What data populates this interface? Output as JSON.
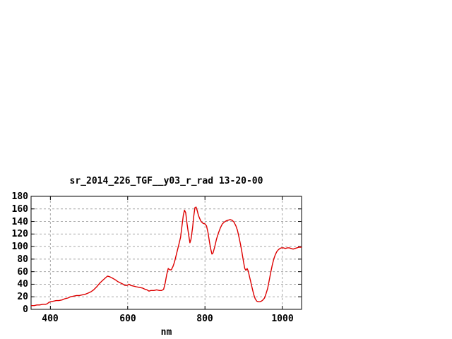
{
  "chart_data": {
    "type": "line",
    "title": "sr_2014_226_TGF__y03_r_rad 13-20-00",
    "xlabel": "nm",
    "ylabel": "",
    "xlim": [
      350,
      1050
    ],
    "ylim": [
      0,
      180
    ],
    "xticks": [
      400,
      600,
      800,
      1000
    ],
    "yticks": [
      0,
      20,
      40,
      60,
      80,
      100,
      120,
      140,
      160,
      180
    ],
    "grid": true,
    "legend_position": "none",
    "line_color": "#dd0000",
    "grid_color": "#a8a8a8",
    "border_color": "#000000",
    "points": [
      [
        350,
        6
      ],
      [
        358,
        6
      ],
      [
        365,
        7
      ],
      [
        372,
        7
      ],
      [
        380,
        8
      ],
      [
        388,
        8
      ],
      [
        392,
        9
      ],
      [
        396,
        11
      ],
      [
        400,
        12
      ],
      [
        408,
        13
      ],
      [
        415,
        14
      ],
      [
        422,
        14
      ],
      [
        430,
        15
      ],
      [
        438,
        17
      ],
      [
        445,
        18
      ],
      [
        452,
        20
      ],
      [
        460,
        21
      ],
      [
        468,
        22
      ],
      [
        475,
        22
      ],
      [
        482,
        23
      ],
      [
        490,
        24
      ],
      [
        498,
        26
      ],
      [
        505,
        28
      ],
      [
        512,
        31
      ],
      [
        520,
        36
      ],
      [
        528,
        42
      ],
      [
        535,
        46
      ],
      [
        542,
        50
      ],
      [
        548,
        53
      ],
      [
        553,
        52
      ],
      [
        560,
        50
      ],
      [
        568,
        47
      ],
      [
        575,
        44
      ],
      [
        582,
        42
      ],
      [
        588,
        40
      ],
      [
        593,
        38
      ],
      [
        598,
        38
      ],
      [
        603,
        40
      ],
      [
        608,
        38
      ],
      [
        615,
        37
      ],
      [
        622,
        36
      ],
      [
        630,
        35
      ],
      [
        638,
        34
      ],
      [
        645,
        32
      ],
      [
        650,
        31
      ],
      [
        655,
        29
      ],
      [
        660,
        30
      ],
      [
        668,
        30
      ],
      [
        675,
        31
      ],
      [
        682,
        30
      ],
      [
        688,
        30
      ],
      [
        693,
        32
      ],
      [
        697,
        42
      ],
      [
        701,
        55
      ],
      [
        705,
        65
      ],
      [
        709,
        63
      ],
      [
        713,
        63
      ],
      [
        717,
        68
      ],
      [
        721,
        75
      ],
      [
        725,
        85
      ],
      [
        729,
        95
      ],
      [
        733,
        105
      ],
      [
        737,
        115
      ],
      [
        741,
        135
      ],
      [
        744,
        150
      ],
      [
        747,
        158
      ],
      [
        750,
        154
      ],
      [
        754,
        135
      ],
      [
        758,
        118
      ],
      [
        761,
        106
      ],
      [
        764,
        112
      ],
      [
        768,
        130
      ],
      [
        771,
        148
      ],
      [
        774,
        162
      ],
      [
        777,
        163
      ],
      [
        780,
        157
      ],
      [
        783,
        150
      ],
      [
        786,
        145
      ],
      [
        790,
        140
      ],
      [
        795,
        137
      ],
      [
        800,
        136
      ],
      [
        804,
        133
      ],
      [
        808,
        122
      ],
      [
        812,
        106
      ],
      [
        815,
        96
      ],
      [
        818,
        88
      ],
      [
        821,
        90
      ],
      [
        825,
        99
      ],
      [
        830,
        112
      ],
      [
        835,
        122
      ],
      [
        840,
        130
      ],
      [
        845,
        136
      ],
      [
        850,
        139
      ],
      [
        855,
        141
      ],
      [
        860,
        142
      ],
      [
        865,
        143
      ],
      [
        870,
        142
      ],
      [
        875,
        139
      ],
      [
        880,
        133
      ],
      [
        884,
        126
      ],
      [
        888,
        115
      ],
      [
        892,
        103
      ],
      [
        896,
        90
      ],
      [
        900,
        75
      ],
      [
        903,
        65
      ],
      [
        906,
        62
      ],
      [
        909,
        65
      ],
      [
        912,
        61
      ],
      [
        915,
        53
      ],
      [
        918,
        45
      ],
      [
        921,
        37
      ],
      [
        924,
        29
      ],
      [
        927,
        22
      ],
      [
        930,
        17
      ],
      [
        934,
        13
      ],
      [
        938,
        12
      ],
      [
        942,
        12
      ],
      [
        946,
        13
      ],
      [
        950,
        15
      ],
      [
        954,
        18
      ],
      [
        958,
        25
      ],
      [
        962,
        33
      ],
      [
        966,
        45
      ],
      [
        970,
        58
      ],
      [
        974,
        70
      ],
      [
        978,
        80
      ],
      [
        982,
        87
      ],
      [
        986,
        92
      ],
      [
        990,
        95
      ],
      [
        994,
        97
      ],
      [
        998,
        98
      ],
      [
        1003,
        98
      ],
      [
        1008,
        97
      ],
      [
        1013,
        98
      ],
      [
        1018,
        98
      ],
      [
        1023,
        97
      ],
      [
        1028,
        96
      ],
      [
        1033,
        97
      ],
      [
        1038,
        98
      ],
      [
        1043,
        99
      ],
      [
        1050,
        99
      ]
    ]
  }
}
